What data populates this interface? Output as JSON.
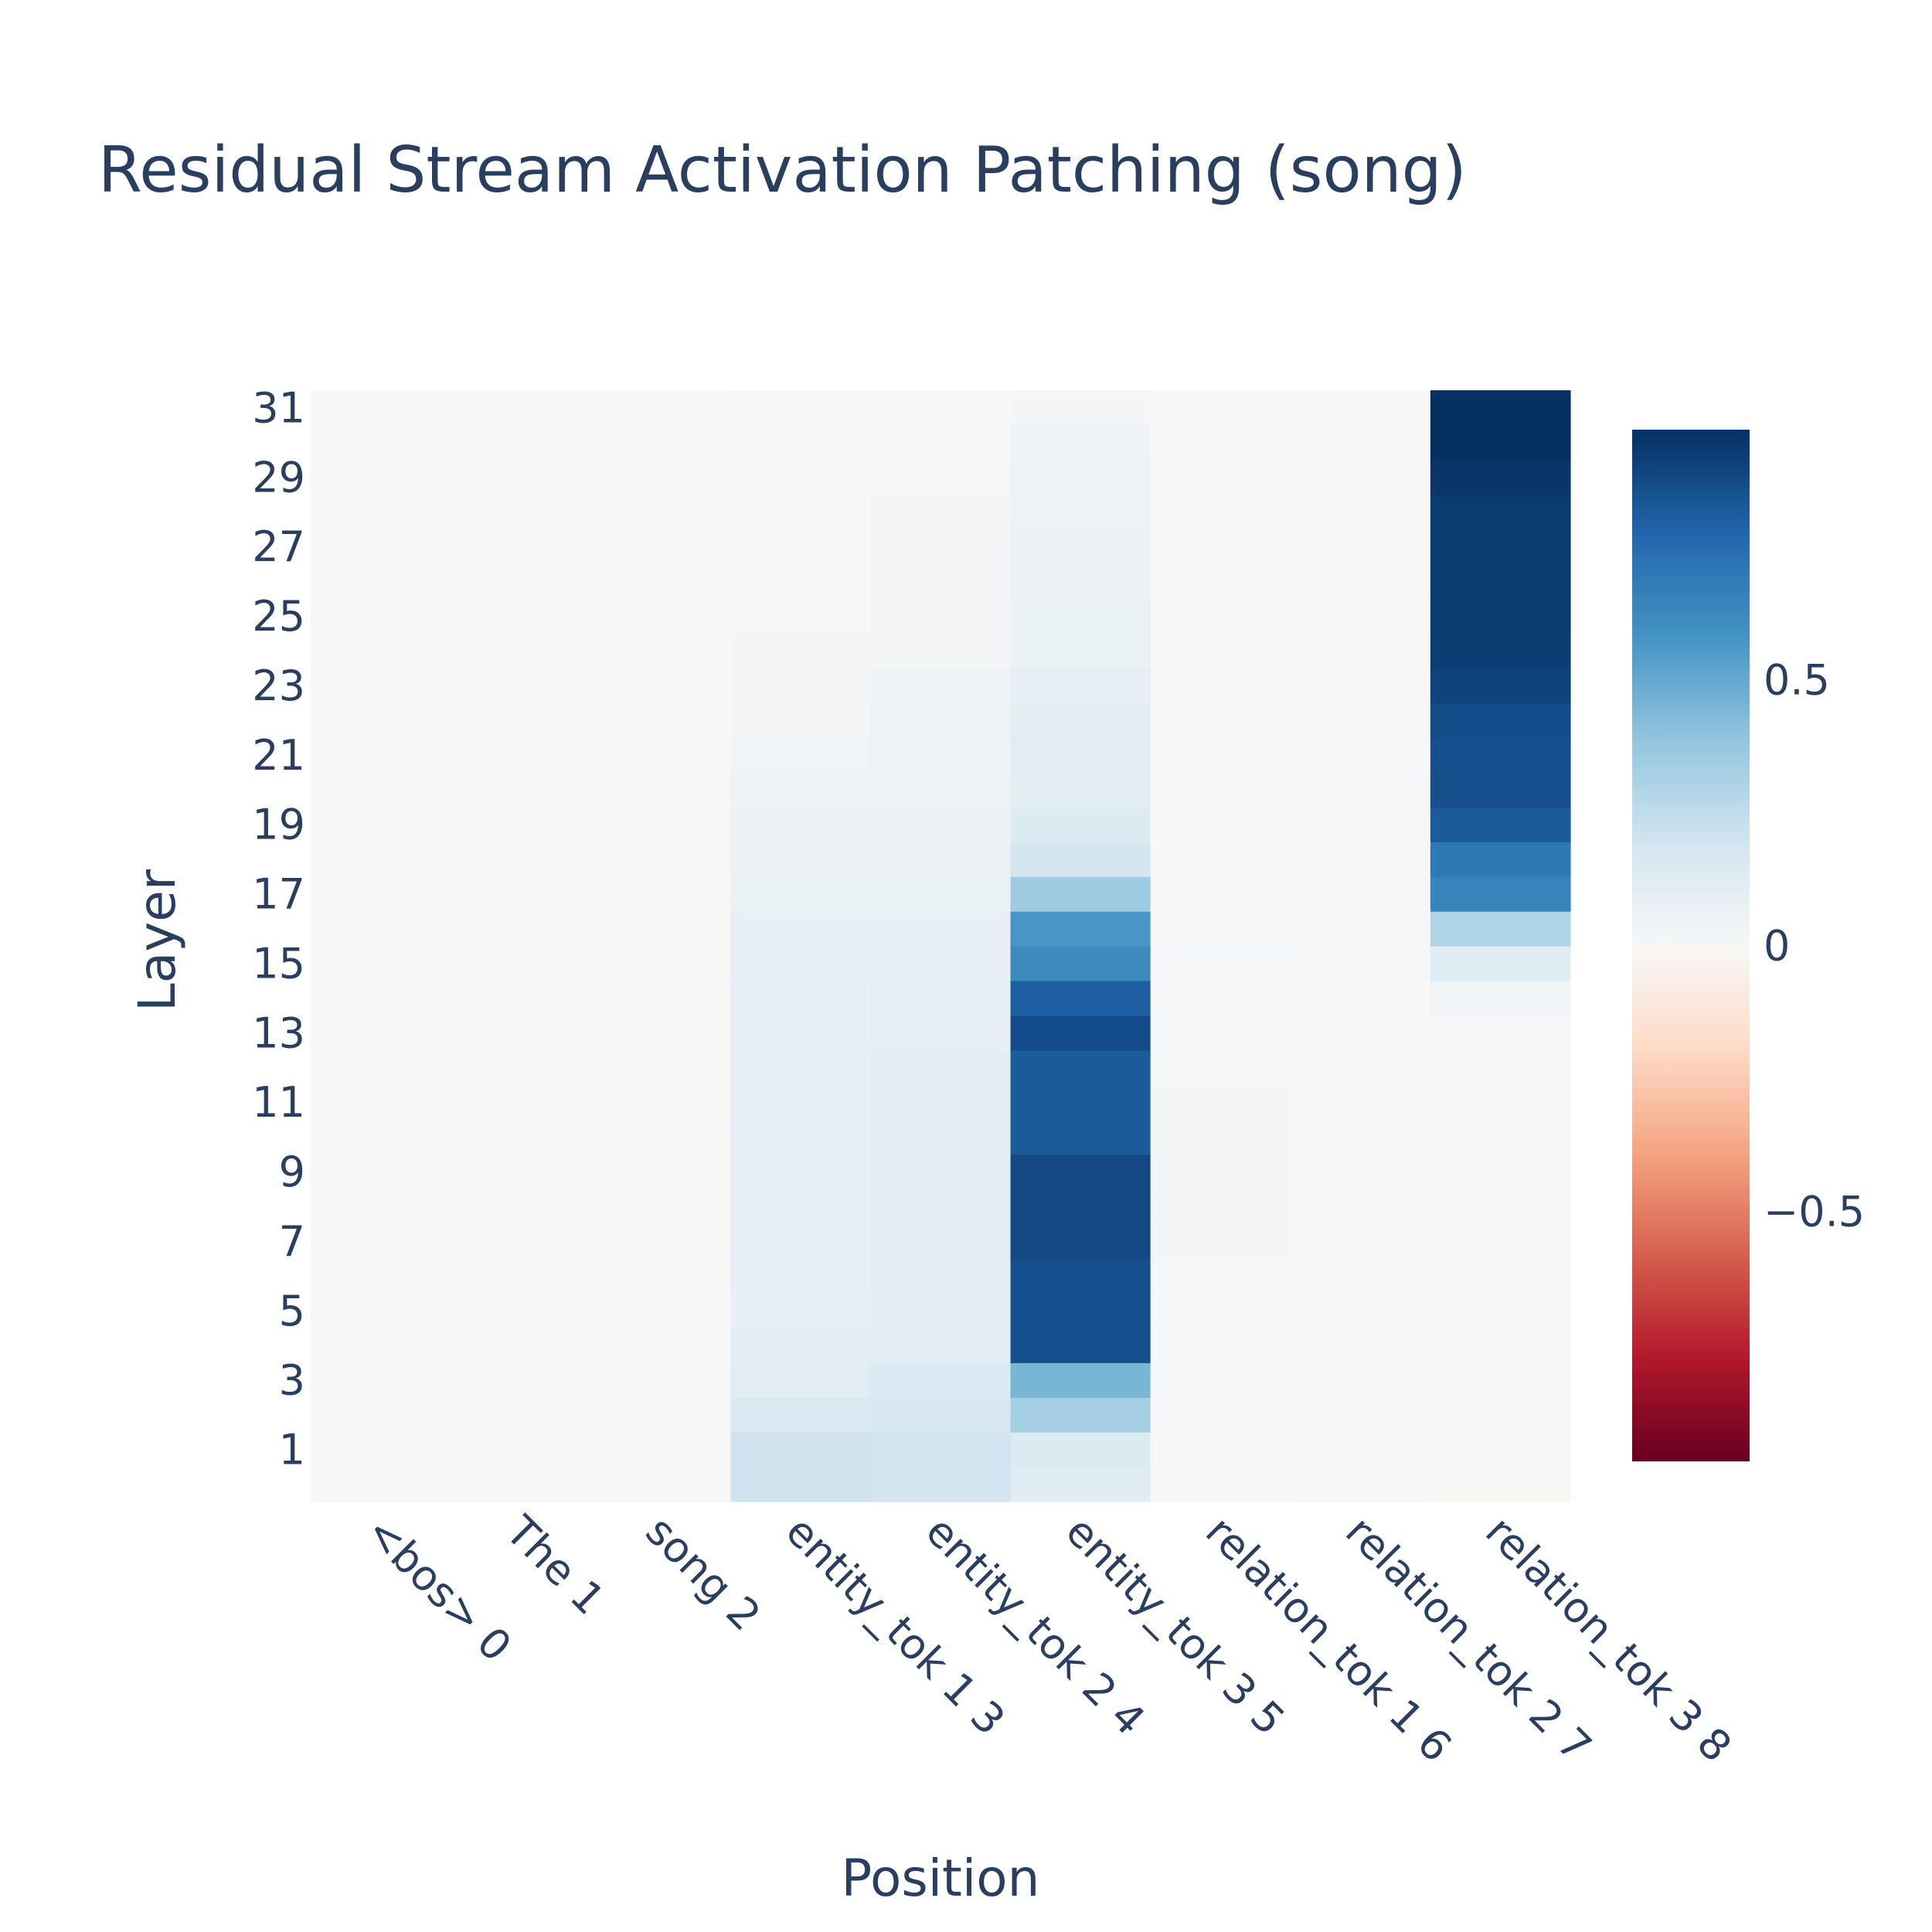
{
  "chart_data": {
    "type": "heatmap",
    "title": "Residual Stream Activation Patching (song)",
    "xlabel": "Position",
    "ylabel": "Layer",
    "x_categories": [
      "<bos> 0",
      "The 1",
      "song 2",
      "entity_tok 1 3",
      "entity_tok 2 4",
      "entity_tok 3 5",
      "relation_tok 1 6",
      "relation_tok 2 7",
      "relation_tok 3 8"
    ],
    "y_tick_labels": [
      "1",
      "3",
      "5",
      "7",
      "9",
      "11",
      "13",
      "15",
      "17",
      "19",
      "21",
      "23",
      "25",
      "27",
      "29",
      "31"
    ],
    "y_range": [
      0,
      31
    ],
    "zrange": [
      -0.97,
      0.97
    ],
    "colorbar_ticks": [
      {
        "value": 0.5,
        "label": "0.5"
      },
      {
        "value": 0,
        "label": "0"
      },
      {
        "value": -0.5,
        "label": "−0.5"
      }
    ],
    "colorscale": "RdBu",
    "values_by_position": [
      [
        0,
        0,
        0,
        0,
        0,
        0,
        0,
        0,
        0,
        0,
        0,
        0,
        0,
        0,
        0,
        0,
        0,
        0,
        0,
        0,
        0,
        0,
        0,
        0,
        0,
        0,
        0,
        0,
        0,
        0,
        0,
        0
      ],
      [
        0,
        0,
        0,
        0,
        0,
        0,
        0,
        0,
        0,
        0,
        0,
        0,
        0,
        0,
        0,
        0,
        0,
        0,
        0,
        0,
        0,
        0,
        0,
        0,
        0,
        0,
        0,
        0,
        0,
        0,
        0,
        0
      ],
      [
        0,
        0,
        0,
        0,
        0,
        0,
        0,
        0,
        0,
        0,
        0,
        0,
        0,
        0,
        0,
        0,
        0,
        0,
        0,
        0,
        0,
        0,
        0,
        0,
        0,
        0,
        0,
        0,
        0,
        0,
        0,
        0
      ],
      [
        0.2,
        0.2,
        0.15,
        0.11,
        0.1,
        0.09,
        0.08,
        0.08,
        0.08,
        0.08,
        0.08,
        0.08,
        0.08,
        0.08,
        0.08,
        0.08,
        0.08,
        0.07,
        0.06,
        0.06,
        0.05,
        0.03,
        0.02,
        0.02,
        0.02,
        0.01,
        0.01,
        0.01,
        0.01,
        0.01,
        0.01,
        0.01
      ],
      [
        0.19,
        0.19,
        0.16,
        0.15,
        0.11,
        0.1,
        0.1,
        0.1,
        0.1,
        0.1,
        0.1,
        0.1,
        0.1,
        0.09,
        0.09,
        0.08,
        0.08,
        0.07,
        0.06,
        0.06,
        0.05,
        0.05,
        0.05,
        0.04,
        0.02,
        0.02,
        0.02,
        0.02,
        0.02,
        0.01,
        0.01,
        0.01
      ],
      [
        0.12,
        0.14,
        0.33,
        0.45,
        0.86,
        0.86,
        0.86,
        0.88,
        0.88,
        0.88,
        0.82,
        0.82,
        0.82,
        0.87,
        0.8,
        0.62,
        0.57,
        0.35,
        0.18,
        0.14,
        0.1,
        0.11,
        0.1,
        0.09,
        0.07,
        0.07,
        0.06,
        0.06,
        0.05,
        0.05,
        0.04,
        0.02
      ],
      [
        0.01,
        0.01,
        0.01,
        0.01,
        0.01,
        0.01,
        0.01,
        0.02,
        0.02,
        0.02,
        0.02,
        0.02,
        0.01,
        0.01,
        0.01,
        0.01,
        0.0,
        0.0,
        0.0,
        0.0,
        0.0,
        0.0,
        0.0,
        0.0,
        0.0,
        0.0,
        0.0,
        0.0,
        0.0,
        0.0,
        0.0,
        0.0
      ],
      [
        0.0,
        0.0,
        0.0,
        0.0,
        -0.005,
        -0.005,
        0.0,
        0.0,
        0.0,
        0.0,
        0.0,
        0.0,
        0.0,
        0.0,
        0.0,
        0.01,
        0.01,
        0.01,
        0.01,
        0.01,
        0.01,
        0.0,
        0.0,
        0.0,
        0.0,
        0.0,
        0.0,
        0.0,
        0.0,
        0.0,
        0.0,
        0.0
      ],
      [
        -0.01,
        -0.01,
        -0.01,
        -0.01,
        0.0,
        0.0,
        0.0,
        0.0,
        0.0,
        0.0,
        0.0,
        0.0,
        0.0,
        0.0,
        0.03,
        0.12,
        0.3,
        0.65,
        0.7,
        0.82,
        0.86,
        0.86,
        0.87,
        0.9,
        0.92,
        0.93,
        0.93,
        0.93,
        0.93,
        0.95,
        0.97,
        0.97
      ]
    ]
  }
}
